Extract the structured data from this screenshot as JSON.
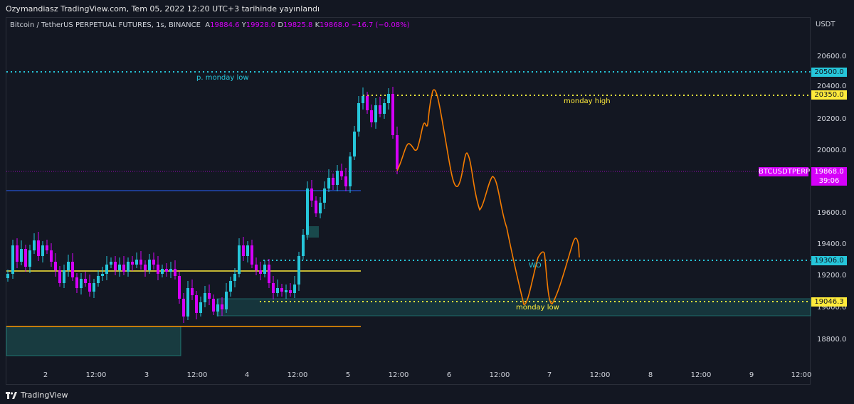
{
  "header": {
    "published": "Ozymandiasz TradingView.com, Tem 05, 2022 12:20 UTC+3 tarihinde yayınlandı"
  },
  "legend": {
    "symbol": "Bitcoin / TetherUS PERPETUAL FUTURES, 1s, BINANCE",
    "open_label": "A",
    "open": "19884.6",
    "high_label": "Y",
    "high": "19928.0",
    "low_label": "D",
    "low": "19825.8",
    "close_label": "K",
    "close": "19868.0",
    "change": "−16.7 (−0.08%)"
  },
  "price_axis": {
    "currency": "USDT",
    "ticks": [
      "20600.0",
      "20400.0",
      "20200.0",
      "20000.0",
      "19600.0",
      "19400.0",
      "19200.0",
      "19000.0",
      "18800.0"
    ]
  },
  "time_axis": {
    "ticks": [
      "2",
      "12:00",
      "3",
      "12:00",
      "4",
      "12:00",
      "5",
      "12:00",
      "6",
      "12:00",
      "7",
      "12:00",
      "8",
      "12:00",
      "9",
      "12:00"
    ]
  },
  "price_tags": {
    "p_monday_low": "20500.0",
    "monday_high": "20350.0",
    "symbol_name": "BTCUSDTPERP",
    "current": "19868.0",
    "countdown": "39:06",
    "level_19306": "19306.0",
    "monday_low": "19046.3"
  },
  "annotations": {
    "p_monday_low": "p. monday low",
    "monday_high": "monday high",
    "wo": "WO",
    "monday_low": "monday low"
  },
  "colors": {
    "up": "#26c6da",
    "down": "#d500f9",
    "cyan_line": "#26c6da",
    "yellow_line": "#ffeb3b",
    "orange_line": "#ff9800",
    "blue_line": "#2962ff",
    "path": "#f57c00"
  },
  "footer": {
    "brand": "TradingView"
  }
}
